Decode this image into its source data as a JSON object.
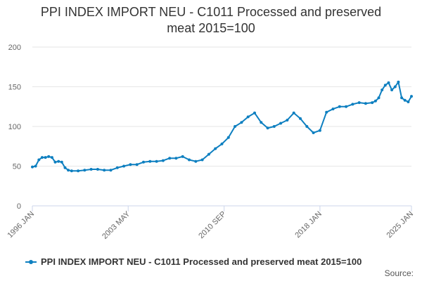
{
  "colors": {
    "series": "#0d7fc0",
    "grid": "#e6e6e6",
    "axis": "#ccd6eb",
    "text": "#333333",
    "tick_text": "#666666"
  },
  "legend": {
    "label": "PPI INDEX IMPORT NEU - C1011 Processed and preserved meat 2015=100"
  },
  "source_label": "Source:",
  "chart_data": {
    "type": "line",
    "title_line1": "PPI INDEX IMPORT NEU - C1011 Processed and preserved",
    "title_line2": "meat 2015=100",
    "xlabel": "",
    "ylabel": "",
    "x_range": [
      1996.0,
      2025.0
    ],
    "ylim": [
      0,
      200
    ],
    "y_ticks": [
      0,
      50,
      100,
      150,
      200
    ],
    "x_ticks": [
      {
        "label": "1996 JAN",
        "x": 1996.0
      },
      {
        "label": "2003 MAY",
        "x": 2003.33
      },
      {
        "label": "2010 SEP",
        "x": 2010.67
      },
      {
        "label": "2018 JAN",
        "x": 2018.0
      },
      {
        "label": "2025 JAN",
        "x": 2025.0
      }
    ],
    "grid": true,
    "series": [
      {
        "name": "PPI INDEX IMPORT NEU - C1011 Processed and preserved meat 2015=100",
        "x": [
          1996.0,
          1996.25,
          1996.5,
          1996.75,
          1997.0,
          1997.25,
          1997.5,
          1997.75,
          1998.0,
          1998.25,
          1998.5,
          1998.75,
          1999.0,
          1999.5,
          2000.0,
          2000.5,
          2001.0,
          2001.5,
          2002.0,
          2002.5,
          2003.0,
          2003.5,
          2004.0,
          2004.5,
          2005.0,
          2005.5,
          2006.0,
          2006.5,
          2007.0,
          2007.5,
          2008.0,
          2008.5,
          2009.0,
          2009.5,
          2010.0,
          2010.5,
          2011.0,
          2011.5,
          2012.0,
          2012.5,
          2013.0,
          2013.5,
          2014.0,
          2014.5,
          2015.0,
          2015.5,
          2016.0,
          2016.5,
          2017.0,
          2017.5,
          2018.0,
          2018.5,
          2019.0,
          2019.5,
          2020.0,
          2020.5,
          2021.0,
          2021.5,
          2022.0,
          2022.25,
          2022.5,
          2022.75,
          2023.0,
          2023.25,
          2023.5,
          2023.75,
          2024.0,
          2024.25,
          2024.5,
          2024.75,
          2025.0
        ],
        "y": [
          49,
          50,
          58,
          61,
          61,
          62,
          61,
          55,
          56,
          55,
          48,
          45,
          44,
          44,
          45,
          46,
          46,
          45,
          45,
          48,
          50,
          52,
          52,
          55,
          56,
          56,
          57,
          60,
          60,
          62,
          58,
          56,
          58,
          65,
          72,
          78,
          86,
          100,
          105,
          112,
          117,
          105,
          98,
          100,
          104,
          108,
          117,
          110,
          100,
          92,
          95,
          118,
          122,
          125,
          125,
          128,
          130,
          129,
          130,
          132,
          136,
          146,
          152,
          155,
          146,
          150,
          156,
          136,
          133,
          131,
          138
        ]
      }
    ]
  }
}
